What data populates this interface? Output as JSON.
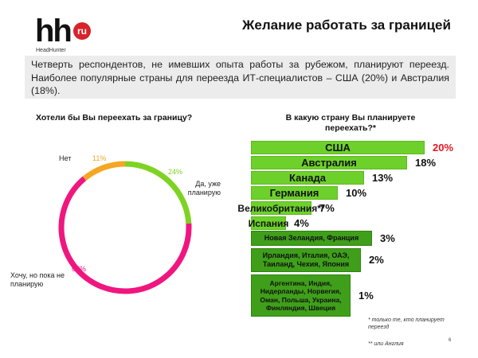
{
  "header": {
    "logo_text": "hh",
    "logo_badge": "ru",
    "logo_brand": "HeadHunter",
    "title": "Желание работать за границей"
  },
  "intro": "Четверть респондентов, не имевших опыта работы за рубежом, планируют переезд. Наиболее популярные страны для переезда ИТ-специалистов – США (20%) и Австралия (18%).",
  "colors": {
    "green": "#7ed321",
    "pink": "#f0167f",
    "orange": "#f5a623",
    "bar": "#6ed12b",
    "bar_dark": "#3f9f1a",
    "red": "#e8161e"
  },
  "chart_data": [
    {
      "type": "pie",
      "title": "Хотели бы Вы переехать за границу?",
      "slices": [
        {
          "label": "Да, уже планирую",
          "value": 24,
          "value_label": "24%",
          "color": "#7ed321"
        },
        {
          "label": "Хочу, но пока не планирую",
          "value": 65,
          "value_label": "65%",
          "color": "#f0167f"
        },
        {
          "label": "Нет",
          "value": 11,
          "value_label": "11%",
          "color": "#f5a623"
        }
      ]
    },
    {
      "type": "bar",
      "orientation": "horizontal",
      "title": "В какую страну Вы планируете переехать?*",
      "categories": [
        "США",
        "Австралия",
        "Канада",
        "Германия",
        "Великобритания**",
        "Испания",
        "Новая Зеландия, Франция",
        "Ирландия, Италия, ОАЭ, Таиланд, Чехия, Япония",
        "Аргентина, Индия, Нидерланды, Норвегия, Оман, Польша, Украина, Финляндия, Швеция"
      ],
      "values": [
        20,
        18,
        13,
        10,
        7,
        4,
        3,
        2,
        1
      ],
      "value_labels": [
        "20%",
        "18%",
        "13%",
        "10%",
        "7%",
        "4%",
        "3%",
        "2%",
        "1%"
      ]
    }
  ],
  "footnotes": {
    "star": "* только те, кто планирует переезд",
    "double_star": "** или Англия"
  },
  "page_number": "6"
}
